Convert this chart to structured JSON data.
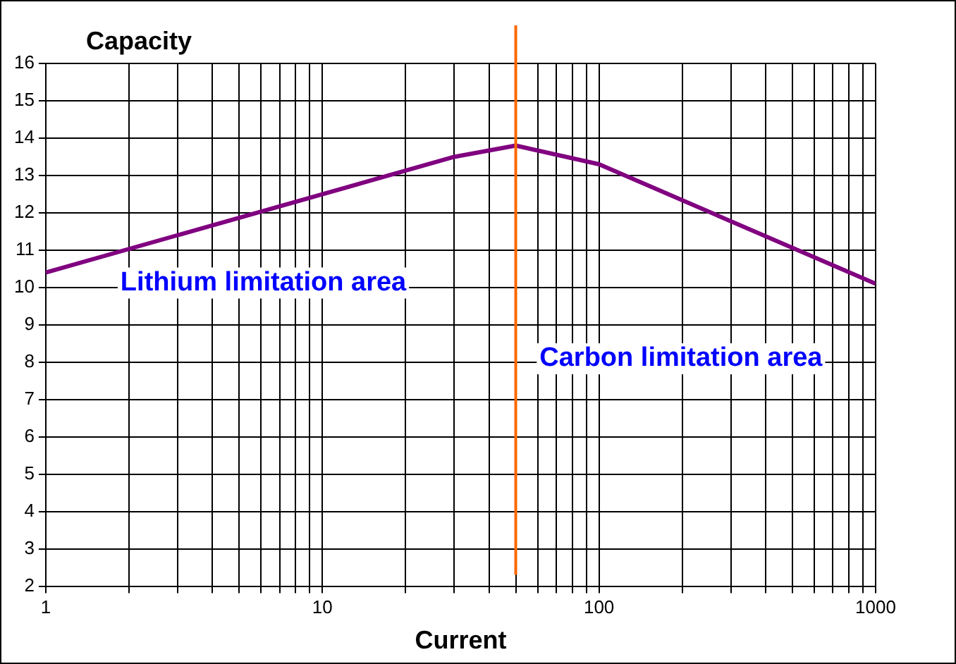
{
  "chart_data": {
    "type": "line",
    "ylabel": "Capacity",
    "xlabel": "Current",
    "log": "x",
    "x": [
      1,
      30,
      50,
      100,
      1000
    ],
    "series": [
      {
        "color": "#800080",
        "values": [
          10.4,
          13.5,
          13.8,
          13.3,
          10.1
        ]
      }
    ],
    "xlim": [
      1,
      1000
    ],
    "xticks": [
      1,
      {
        "value": 2,
        "label": null
      },
      {
        "value": 3,
        "label": null
      },
      {
        "value": 4,
        "label": null
      },
      {
        "value": 5,
        "label": null
      },
      {
        "value": 6,
        "label": null
      },
      {
        "value": 7,
        "label": null
      },
      {
        "value": 8,
        "label": null
      },
      {
        "value": 9,
        "label": null
      },
      10,
      {
        "value": 20,
        "label": null
      },
      {
        "value": 30,
        "label": null
      },
      {
        "value": 40,
        "label": null
      },
      {
        "value": 50,
        "label": null
      },
      {
        "value": 60,
        "label": null
      },
      {
        "value": 70,
        "label": null
      },
      {
        "value": 80,
        "label": null
      },
      {
        "value": 90,
        "label": null
      },
      100,
      {
        "value": 200,
        "label": null
      },
      {
        "value": 300,
        "label": null
      },
      {
        "value": 400,
        "label": null
      },
      {
        "value": 500,
        "label": null
      },
      {
        "value": 600,
        "label": null
      },
      {
        "value": 700,
        "label": null
      },
      {
        "value": 800,
        "label": null
      },
      {
        "value": 900,
        "label": null
      },
      1000
    ],
    "ylim": [
      2,
      16
    ],
    "yticks": [
      2,
      3,
      4,
      5,
      6,
      7,
      8,
      9,
      10,
      11,
      12,
      13,
      14,
      15,
      16
    ],
    "grid": true,
    "legend": false,
    "marker": "none",
    "line_style": "solid",
    "ref_lines": [
      {
        "axis": "x",
        "value": 50,
        "color": "#ff6600"
      }
    ],
    "annotations": [
      "Lithium limitation area",
      "Carbon limitation area"
    ]
  }
}
